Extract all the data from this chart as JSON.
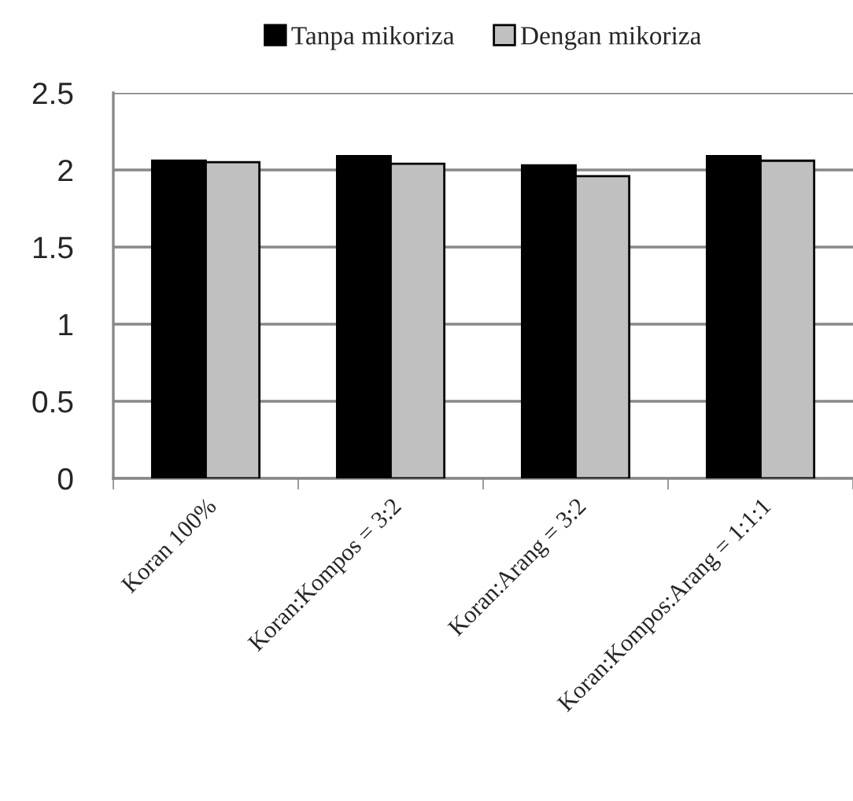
{
  "chart_data": {
    "type": "bar",
    "categories": [
      "Koran 100%",
      "Koran:Kompos = 3:2",
      "Koran:Arang = 3:2",
      "Koran:Kompos:Arang = 1:1:1"
    ],
    "series": [
      {
        "name": "Tanpa mikoriza",
        "color": "#000000",
        "values": [
          2.06,
          2.09,
          2.03,
          2.09
        ]
      },
      {
        "name": "Dengan mikoriza",
        "color": "#c0c0c0",
        "values": [
          2.05,
          2.04,
          1.96,
          2.06
        ]
      }
    ],
    "ylim": [
      0,
      2.5
    ],
    "yticks": [
      0,
      {
        "value": 0.5,
        "label": "0.5"
      },
      {
        "value": 1,
        "label": "1"
      },
      {
        "value": 1.5,
        "label": "1.5"
      },
      {
        "value": 2,
        "label": "2"
      },
      {
        "value": 2.5,
        "label": "2.5"
      }
    ],
    "grid": "y",
    "legend": "top"
  }
}
